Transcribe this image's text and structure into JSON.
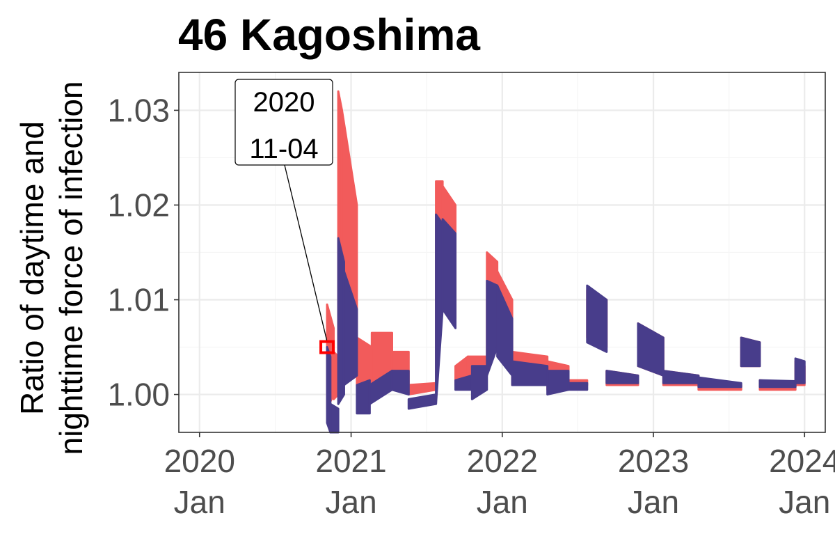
{
  "chart_data": {
    "type": "line",
    "title": "46 Kagoshima",
    "ylabel_lines": [
      "Ratio of daytime and",
      "nighttime force of infection"
    ],
    "xlabel": "",
    "x_ticks": [
      {
        "value": "2020-01-01",
        "line1": "2020",
        "line2": "Jan"
      },
      {
        "value": "2021-01-01",
        "line1": "2021",
        "line2": "Jan"
      },
      {
        "value": "2022-01-01",
        "line1": "2022",
        "line2": "Jan"
      },
      {
        "value": "2023-01-01",
        "line1": "2023",
        "line2": "Jan"
      },
      {
        "value": "2024-01-01",
        "line1": "2024",
        "line2": "Jan"
      }
    ],
    "y_ticks": [
      "1.00",
      "1.01",
      "1.02",
      "1.03"
    ],
    "xlim": [
      "2019-11-12",
      "2024-02-20"
    ],
    "ylim": [
      0.996,
      1.034
    ],
    "grid": true,
    "annotation": {
      "date": "2020-11-04",
      "y": 1.005,
      "line1": "2020",
      "line2": "11-04",
      "marker_color": "#ff0000"
    },
    "series": [
      {
        "color": "#f25b5b",
        "bands": [
          {
            "x": [
              "2020-11-04",
              "2020-11-20"
            ],
            "lo": [
              0.9985,
              1.0
            ],
            "hi": [
              1.0095,
              1.007
            ]
          },
          {
            "x": [
              "2020-11-20",
              "2020-12-01"
            ],
            "lo": [
              0.9995,
              1.0
            ],
            "hi": [
              1.0045,
              1.004
            ]
          },
          {
            "x": [
              "2020-12-01",
              "2020-12-10"
            ],
            "lo": [
              1.0,
              1.001
            ],
            "hi": [
              1.032,
              1.03
            ]
          },
          {
            "x": [
              "2020-12-10",
              "2021-01-15"
            ],
            "lo": [
              1.001,
              1.002
            ],
            "hi": [
              1.03,
              1.02
            ]
          },
          {
            "x": [
              "2021-01-15",
              "2021-02-20"
            ],
            "lo": [
              1.001,
              1.001
            ],
            "hi": [
              1.006,
              1.005
            ]
          },
          {
            "x": [
              "2021-02-20",
              "2021-04-10"
            ],
            "lo": [
              1.0,
              1.001
            ],
            "hi": [
              1.0065,
              1.0065
            ]
          },
          {
            "x": [
              "2021-04-10",
              "2021-05-20"
            ],
            "lo": [
              1.0005,
              1.001
            ],
            "hi": [
              1.0045,
              1.0045
            ]
          },
          {
            "x": [
              "2021-05-20",
              "2021-07-25"
            ],
            "lo": [
              1.0,
              1.0005
            ],
            "hi": [
              1.001,
              1.0012
            ]
          },
          {
            "x": [
              "2021-07-25",
              "2021-08-10"
            ],
            "lo": [
              1.0005,
              1.01
            ],
            "hi": [
              1.0225,
              1.0225
            ]
          },
          {
            "x": [
              "2021-08-10",
              "2021-09-10"
            ],
            "lo": [
              1.01,
              1.008
            ],
            "hi": [
              1.022,
              1.02
            ]
          },
          {
            "x": [
              "2021-09-10",
              "2021-10-10"
            ],
            "lo": [
              1.001,
              1.001
            ],
            "hi": [
              1.003,
              1.004
            ]
          },
          {
            "x": [
              "2021-10-10",
              "2021-11-25"
            ],
            "lo": [
              1.001,
              1.002
            ],
            "hi": [
              1.004,
              1.004
            ]
          },
          {
            "x": [
              "2021-11-25",
              "2021-12-20"
            ],
            "lo": [
              1.003,
              1.007
            ],
            "hi": [
              1.015,
              1.014
            ]
          },
          {
            "x": [
              "2021-12-20",
              "2022-01-25"
            ],
            "lo": [
              1.006,
              1.002
            ],
            "hi": [
              1.013,
              1.01
            ]
          },
          {
            "x": [
              "2022-01-25",
              "2022-04-20"
            ],
            "lo": [
              1.001,
              1.001
            ],
            "hi": [
              1.0045,
              1.004
            ]
          },
          {
            "x": [
              "2022-04-20",
              "2022-06-10"
            ],
            "lo": [
              1.0005,
              1.001
            ],
            "hi": [
              1.0035,
              1.003
            ]
          },
          {
            "x": [
              "2022-06-10",
              "2022-07-25"
            ],
            "lo": [
              1.001,
              1.001
            ],
            "hi": [
              1.0015,
              1.0015
            ]
          },
          {
            "x": [
              "2022-07-25",
              "2022-09-10"
            ],
            "lo": [
              1.006,
              1.005
            ],
            "hi": [
              1.011,
              1.01
            ]
          },
          {
            "x": [
              "2022-09-10",
              "2022-11-25"
            ],
            "lo": [
              1.001,
              1.001
            ],
            "hi": [
              1.0025,
              1.002
            ]
          },
          {
            "x": [
              "2022-11-25",
              "2023-01-25"
            ],
            "lo": [
              1.003,
              1.002
            ],
            "hi": [
              1.0075,
              1.006
            ]
          },
          {
            "x": [
              "2023-01-25",
              "2023-04-20"
            ],
            "lo": [
              1.001,
              1.001
            ],
            "hi": [
              1.0025,
              1.002
            ]
          },
          {
            "x": [
              "2023-04-20",
              "2023-08-01"
            ],
            "lo": [
              1.0005,
              1.0005
            ],
            "hi": [
              1.0015,
              1.001
            ]
          },
          {
            "x": [
              "2023-08-01",
              "2023-09-15"
            ],
            "lo": [
              1.003,
              1.003
            ],
            "hi": [
              1.006,
              1.0055
            ]
          },
          {
            "x": [
              "2023-09-15",
              "2023-12-10"
            ],
            "lo": [
              1.0005,
              1.0005
            ],
            "hi": [
              1.0015,
              1.0012
            ]
          },
          {
            "x": [
              "2023-12-10",
              "2024-01-01"
            ],
            "lo": [
              1.001,
              1.001
            ],
            "hi": [
              1.0035,
              1.003
            ]
          }
        ]
      },
      {
        "color": "#483d8b",
        "bands": [
          {
            "x": [
              "2020-11-04",
              "2020-11-12"
            ],
            "lo": [
              0.997,
              0.996
            ],
            "hi": [
              1.005,
              1.004
            ]
          },
          {
            "x": [
              "2020-11-12",
              "2020-12-01"
            ],
            "lo": [
              0.996,
              0.996
            ],
            "hi": [
              0.999,
              0.9985
            ]
          },
          {
            "x": [
              "2020-12-01",
              "2020-12-15"
            ],
            "lo": [
              0.999,
              1.0
            ],
            "hi": [
              1.0165,
              1.014
            ]
          },
          {
            "x": [
              "2020-12-15",
              "2021-01-15"
            ],
            "lo": [
              1.001,
              1.002
            ],
            "hi": [
              1.013,
              1.009
            ]
          },
          {
            "x": [
              "2021-01-15",
              "2021-02-15"
            ],
            "lo": [
              0.998,
              0.998
            ],
            "hi": [
              1.001,
              1.0015
            ]
          },
          {
            "x": [
              "2021-02-15",
              "2021-04-10"
            ],
            "lo": [
              0.999,
              1.0005
            ],
            "hi": [
              1.001,
              1.0025
            ]
          },
          {
            "x": [
              "2021-04-10",
              "2021-05-20"
            ],
            "lo": [
              1.0005,
              1.0
            ],
            "hi": [
              1.0025,
              1.0025
            ]
          },
          {
            "x": [
              "2021-05-20",
              "2021-07-25"
            ],
            "lo": [
              0.9985,
              0.999
            ],
            "hi": [
              0.9995,
              1.0
            ]
          },
          {
            "x": [
              "2021-07-25",
              "2021-08-10"
            ],
            "lo": [
              0.999,
              1.009
            ],
            "hi": [
              1.019,
              1.018
            ]
          },
          {
            "x": [
              "2021-08-10",
              "2021-09-10"
            ],
            "lo": [
              1.009,
              1.007
            ],
            "hi": [
              1.0185,
              1.017
            ]
          },
          {
            "x": [
              "2021-09-10",
              "2021-10-20"
            ],
            "lo": [
              1.0005,
              1.0005
            ],
            "hi": [
              1.0015,
              1.002
            ]
          },
          {
            "x": [
              "2021-10-20",
              "2021-11-25"
            ],
            "lo": [
              0.9995,
              1.0005
            ],
            "hi": [
              1.003,
              1.003
            ]
          },
          {
            "x": [
              "2021-11-25",
              "2021-12-20"
            ],
            "lo": [
              1.002,
              1.005
            ],
            "hi": [
              1.012,
              1.0115
            ]
          },
          {
            "x": [
              "2021-12-20",
              "2022-01-25"
            ],
            "lo": [
              1.004,
              1.002
            ],
            "hi": [
              1.0115,
              1.008
            ]
          },
          {
            "x": [
              "2022-01-25",
              "2022-04-20"
            ],
            "lo": [
              1.001,
              1.001
            ],
            "hi": [
              1.0035,
              1.003
            ]
          },
          {
            "x": [
              "2022-04-20",
              "2022-06-10"
            ],
            "lo": [
              1.0,
              1.0005
            ],
            "hi": [
              1.0025,
              1.0025
            ]
          },
          {
            "x": [
              "2022-06-10",
              "2022-07-25"
            ],
            "lo": [
              1.0005,
              1.0005
            ],
            "hi": [
              1.0012,
              1.0012
            ]
          },
          {
            "x": [
              "2022-07-25",
              "2022-09-10"
            ],
            "lo": [
              1.0055,
              1.0045
            ],
            "hi": [
              1.0115,
              1.01
            ]
          },
          {
            "x": [
              "2022-09-10",
              "2022-11-25"
            ],
            "lo": [
              1.0012,
              1.0012
            ],
            "hi": [
              1.0025,
              1.002
            ]
          },
          {
            "x": [
              "2022-11-25",
              "2023-01-25"
            ],
            "lo": [
              1.003,
              1.002
            ],
            "hi": [
              1.0075,
              1.006
            ]
          },
          {
            "x": [
              "2023-01-25",
              "2023-04-20"
            ],
            "lo": [
              1.0012,
              1.0012
            ],
            "hi": [
              1.0025,
              1.002
            ]
          },
          {
            "x": [
              "2023-04-20",
              "2023-08-01"
            ],
            "lo": [
              1.0008,
              1.0008
            ],
            "hi": [
              1.0018,
              1.0012
            ]
          },
          {
            "x": [
              "2023-08-01",
              "2023-09-15"
            ],
            "lo": [
              1.003,
              1.003
            ],
            "hi": [
              1.006,
              1.0055
            ]
          },
          {
            "x": [
              "2023-09-15",
              "2023-12-10"
            ],
            "lo": [
              1.0008,
              1.0008
            ],
            "hi": [
              1.0015,
              1.0014
            ]
          },
          {
            "x": [
              "2023-12-10",
              "2024-01-01"
            ],
            "lo": [
              1.0012,
              1.0012
            ],
            "hi": [
              1.0038,
              1.0035
            ]
          }
        ]
      }
    ]
  }
}
